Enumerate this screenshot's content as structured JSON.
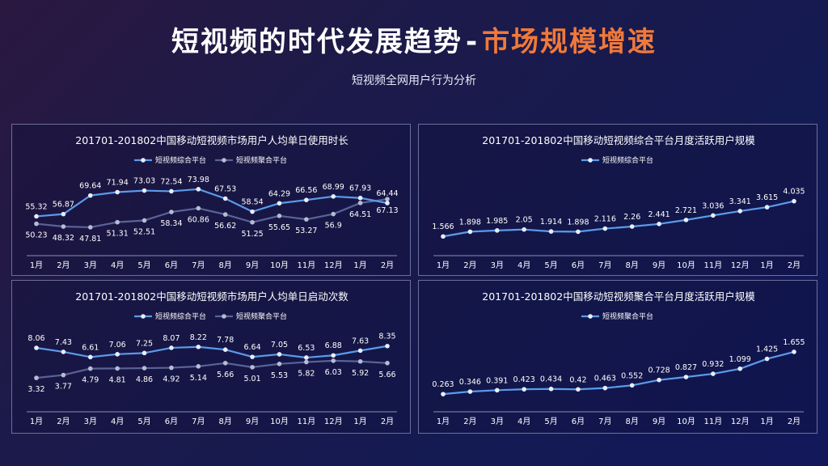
{
  "header": {
    "title_main": "短视频的时代发展趋势",
    "title_sep": "-",
    "title_accent": "市场规模增速",
    "subtitle": "短视频全网用户行为分析"
  },
  "colors": {
    "series_light": "#5b9bea",
    "series_dark": "#5a6396",
    "marker_light": "#e8eeff",
    "marker_dark": "#b7bcd6",
    "accent": "#f0793a"
  },
  "chart_data": [
    {
      "type": "line",
      "title": "201701-201802中国移动短视频市场用户人均单日使用时长",
      "categories": [
        "1月",
        "2月",
        "3月",
        "4月",
        "5月",
        "6月",
        "7月",
        "8月",
        "9月",
        "10月",
        "11月",
        "12月",
        "1月",
        "2月"
      ],
      "series": [
        {
          "name": "短视频综合平台",
          "values": [
            55.32,
            56.87,
            69.64,
            71.94,
            73.03,
            72.54,
            73.98,
            67.53,
            58.54,
            64.29,
            66.56,
            68.99,
            67.93,
            64.44
          ],
          "label_position": "above"
        },
        {
          "name": "短视频聚合平台",
          "values": [
            50.23,
            48.32,
            47.81,
            51.31,
            52.51,
            58.34,
            60.86,
            56.62,
            51.25,
            55.65,
            53.27,
            56.9,
            64.51,
            67.13
          ],
          "label_position": "below"
        }
      ],
      "ylim": [
        35,
        85
      ]
    },
    {
      "type": "line",
      "title": "201701-201802中国移动短视频综合平台月度活跃用户规模",
      "categories": [
        "1月",
        "2月",
        "3月",
        "4月",
        "5月",
        "6月",
        "7月",
        "8月",
        "9月",
        "10月",
        "11月",
        "12月",
        "1月",
        "2月"
      ],
      "series": [
        {
          "name": "短视频综合平台",
          "values": [
            1.566,
            1.898,
            1.985,
            2.05,
            1.914,
            1.898,
            2.116,
            2.26,
            2.441,
            2.721,
            3.036,
            3.341,
            3.615,
            4.035
          ],
          "label_position": "above"
        }
      ],
      "ylim": [
        0.9,
        6.0
      ]
    },
    {
      "type": "line",
      "title": "201701-201802中国移动短视频市场用户人均单日启动次数",
      "categories": [
        "1月",
        "2月",
        "3月",
        "4月",
        "5月",
        "6月",
        "7月",
        "8月",
        "9月",
        "10月",
        "11月",
        "12月",
        "1月",
        "2月"
      ],
      "series": [
        {
          "name": "短视频综合平台",
          "values": [
            8.06,
            7.43,
            6.61,
            7.06,
            7.25,
            8.07,
            8.22,
            7.78,
            6.64,
            7.05,
            6.53,
            6.88,
            7.63,
            8.35
          ],
          "label_position": "above"
        },
        {
          "name": "短视频聚合平台",
          "values": [
            3.32,
            3.77,
            4.79,
            4.81,
            4.86,
            4.92,
            5.14,
            5.66,
            5.01,
            5.53,
            5.82,
            6.03,
            5.92,
            5.66
          ],
          "label_position": "below"
        }
      ],
      "ylim": [
        -0.5,
        11.0
      ]
    },
    {
      "type": "line",
      "title": "201701-201802中国移动短视频聚合平台月度活跃用户规模",
      "categories": [
        "1月",
        "2月",
        "3月",
        "4月",
        "5月",
        "6月",
        "7月",
        "8月",
        "9月",
        "10月",
        "11月",
        "12月",
        "1月",
        "2月"
      ],
      "series": [
        {
          "name": "短视频聚合平台",
          "values": [
            0.263,
            0.346,
            0.391,
            0.423,
            0.434,
            0.42,
            0.463,
            0.552,
            0.728,
            0.827,
            0.932,
            1.099,
            1.425,
            1.655
          ],
          "label_position": "above"
        }
      ],
      "ylim": [
        0.0,
        2.4
      ]
    }
  ]
}
